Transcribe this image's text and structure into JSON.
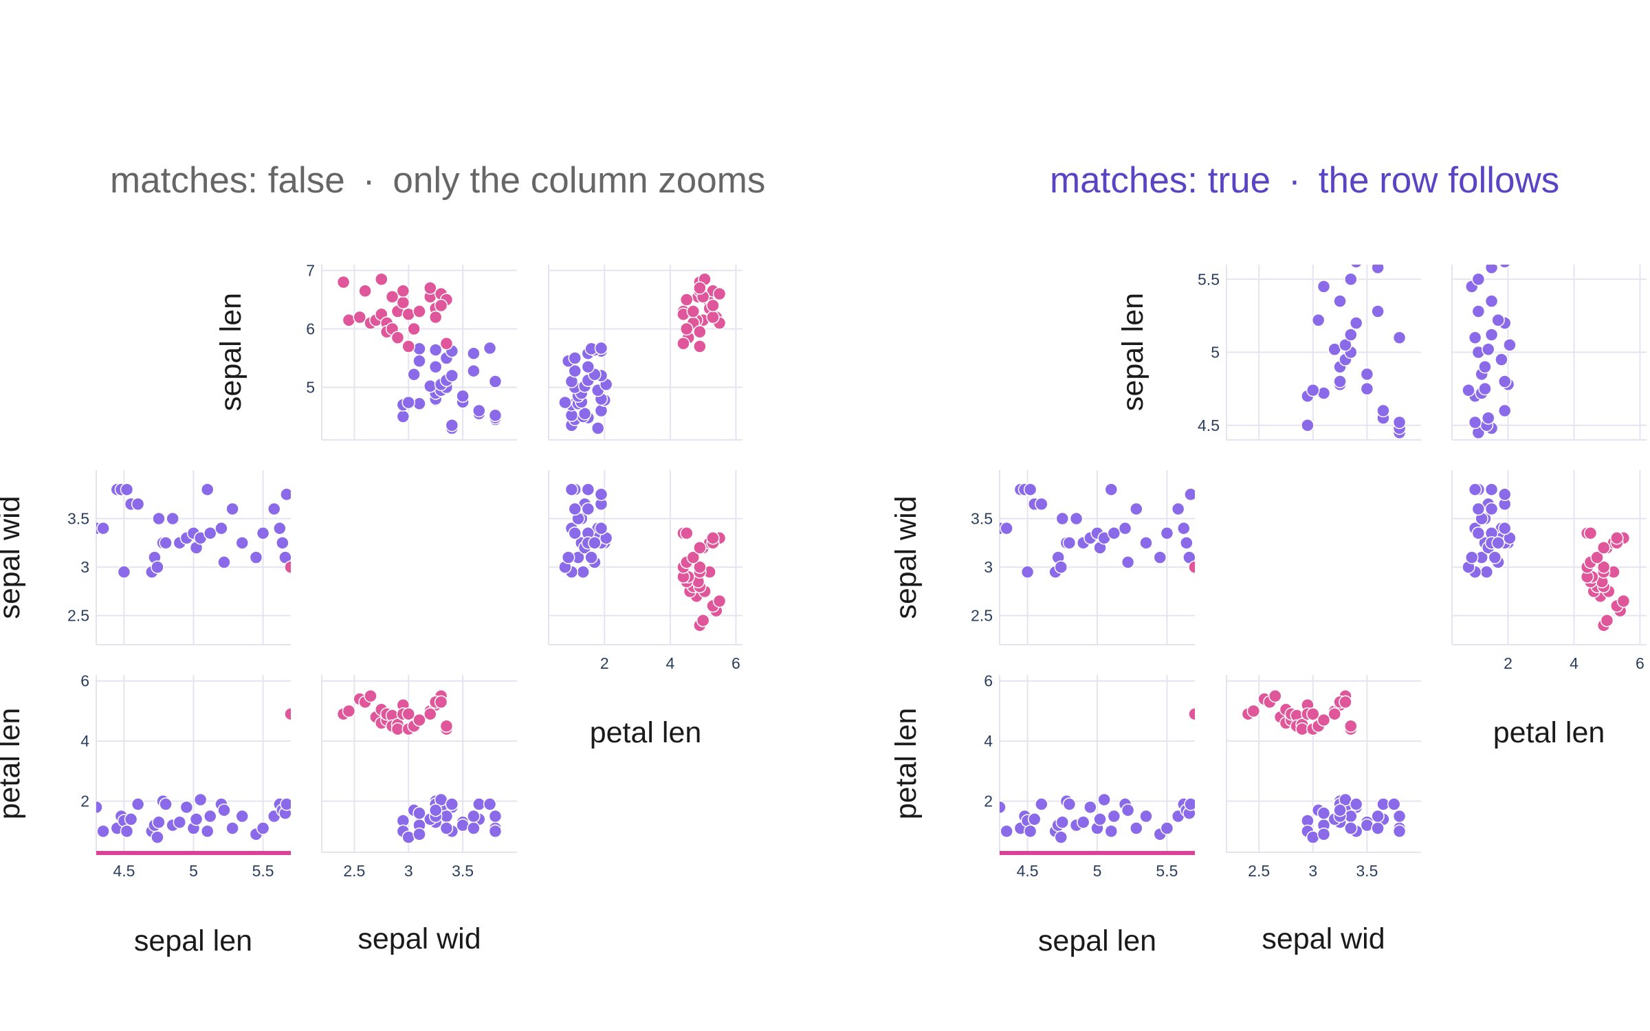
{
  "colors": {
    "cluster_a": "#8a6ae8",
    "cluster_b": "#e0569a",
    "title_false": "#666666",
    "title_true": "#5a44c4",
    "grid": "#e6e3f0",
    "zoom_bar": "#d94496"
  },
  "panels": [
    {
      "title": {
        "matches": "matches: false",
        "separator": "·",
        "description": "only the column zooms"
      },
      "axes": {
        "sepal_len": "sepal len",
        "sepal_wid": "sepal wid",
        "petal_len": "petal len"
      }
    },
    {
      "title": {
        "matches": "matches: true",
        "separator": "·",
        "description": "the row follows"
      },
      "axes": {
        "sepal_len": "sepal len",
        "sepal_wid": "sepal wid",
        "petal_len": "petal len"
      }
    }
  ],
  "chart_data": [
    {
      "type": "scatter",
      "title": "matches: false · only the column zooms",
      "dimensions": [
        "sepal len",
        "sepal wid",
        "petal len"
      ],
      "series": [
        {
          "color": "#8a6ae8",
          "points": [
            [
              4.3,
              3.4,
              1.8
            ],
            [
              4.35,
              3.4,
              1.0
            ],
            [
              4.45,
              3.8,
              1.1
            ],
            [
              4.48,
              3.8,
              1.5
            ],
            [
              4.5,
              2.95,
              1.35
            ],
            [
              4.52,
              3.8,
              1.0
            ],
            [
              4.55,
              3.65,
              1.4
            ],
            [
              4.6,
              3.65,
              1.9
            ],
            [
              4.7,
              2.95,
              1.0
            ],
            [
              4.72,
              3.1,
              1.2
            ],
            [
              4.74,
              3.0,
              0.8
            ],
            [
              4.75,
              3.5,
              1.3
            ],
            [
              4.78,
              3.25,
              2.0
            ],
            [
              4.8,
              3.25,
              1.9
            ],
            [
              4.85,
              3.5,
              1.2
            ],
            [
              4.9,
              3.25,
              1.3
            ],
            [
              4.95,
              3.3,
              1.8
            ],
            [
              5.0,
              3.35,
              1.1
            ],
            [
              5.02,
              3.2,
              1.4
            ],
            [
              5.05,
              3.3,
              2.05
            ],
            [
              5.1,
              3.8,
              1.0
            ],
            [
              5.12,
              3.35,
              1.5
            ],
            [
              5.2,
              3.4,
              1.9
            ],
            [
              5.22,
              3.05,
              1.7
            ],
            [
              5.28,
              3.6,
              1.1
            ],
            [
              5.35,
              3.25,
              1.5
            ],
            [
              5.45,
              3.1,
              0.9
            ],
            [
              5.5,
              3.35,
              1.1
            ],
            [
              5.58,
              3.6,
              1.5
            ],
            [
              5.62,
              3.4,
              1.9
            ],
            [
              5.64,
              3.25,
              1.7
            ],
            [
              5.66,
              3.1,
              1.6
            ],
            [
              5.67,
              3.75,
              1.9
            ]
          ]
        },
        {
          "color": "#e0569a",
          "points": [
            [
              6.8,
              2.4,
              4.9
            ],
            [
              6.15,
              2.45,
              5.0
            ],
            [
              6.2,
              2.55,
              5.4
            ],
            [
              6.65,
              2.6,
              5.3
            ],
            [
              6.1,
              2.65,
              5.5
            ],
            [
              6.15,
              2.7,
              4.8
            ],
            [
              6.85,
              2.75,
              5.05
            ],
            [
              6.25,
              2.75,
              4.6
            ],
            [
              6.1,
              2.8,
              4.7
            ],
            [
              5.95,
              2.8,
              4.9
            ],
            [
              6.55,
              2.85,
              4.85
            ],
            [
              6.0,
              2.85,
              4.5
            ],
            [
              5.85,
              2.9,
              4.55
            ],
            [
              6.3,
              2.9,
              4.4
            ],
            [
              6.45,
              2.95,
              5.2
            ],
            [
              6.65,
              2.95,
              4.9
            ],
            [
              6.25,
              3.0,
              4.4
            ],
            [
              5.7,
              3.0,
              4.9
            ],
            [
              6.0,
              3.05,
              4.5
            ],
            [
              6.3,
              3.1,
              4.7
            ],
            [
              6.55,
              3.2,
              5.0
            ],
            [
              6.35,
              3.25,
              5.2
            ],
            [
              6.6,
              3.3,
              5.5
            ],
            [
              5.75,
              3.35,
              4.4
            ],
            [
              6.5,
              3.35,
              4.5
            ],
            [
              6.7,
              3.2,
              4.9
            ],
            [
              6.2,
              3.25,
              5.3
            ],
            [
              6.4,
              3.3,
              5.3
            ]
          ]
        }
      ]
    },
    {
      "type": "scatter",
      "title": "matches: true · the row follows",
      "dimensions": [
        "sepal len",
        "sepal wid",
        "petal len"
      ],
      "series": [
        {
          "color": "#8a6ae8",
          "points": [
            [
              4.3,
              3.4,
              1.8
            ],
            [
              4.35,
              3.4,
              1.0
            ],
            [
              4.45,
              3.8,
              1.1
            ],
            [
              4.48,
              3.8,
              1.5
            ],
            [
              4.5,
              2.95,
              1.35
            ],
            [
              4.52,
              3.8,
              1.0
            ],
            [
              4.55,
              3.65,
              1.4
            ],
            [
              4.6,
              3.65,
              1.9
            ],
            [
              4.7,
              2.95,
              1.0
            ],
            [
              4.72,
              3.1,
              1.2
            ],
            [
              4.74,
              3.0,
              0.8
            ],
            [
              4.75,
              3.5,
              1.3
            ],
            [
              4.78,
              3.25,
              2.0
            ],
            [
              4.8,
              3.25,
              1.9
            ],
            [
              4.85,
              3.5,
              1.2
            ],
            [
              4.9,
              3.25,
              1.3
            ],
            [
              4.95,
              3.3,
              1.8
            ],
            [
              5.0,
              3.35,
              1.1
            ],
            [
              5.02,
              3.2,
              1.4
            ],
            [
              5.05,
              3.3,
              2.05
            ],
            [
              5.1,
              3.8,
              1.0
            ],
            [
              5.12,
              3.35,
              1.5
            ],
            [
              5.2,
              3.4,
              1.9
            ],
            [
              5.22,
              3.05,
              1.7
            ],
            [
              5.28,
              3.6,
              1.1
            ],
            [
              5.35,
              3.25,
              1.5
            ],
            [
              5.45,
              3.1,
              0.9
            ],
            [
              5.5,
              3.35,
              1.1
            ],
            [
              5.58,
              3.6,
              1.5
            ],
            [
              5.62,
              3.4,
              1.9
            ],
            [
              5.64,
              3.25,
              1.7
            ],
            [
              5.66,
              3.1,
              1.6
            ],
            [
              5.67,
              3.75,
              1.9
            ]
          ]
        },
        {
          "color": "#e0569a",
          "points": [
            [
              6.8,
              2.4,
              4.9
            ],
            [
              6.15,
              2.45,
              5.0
            ],
            [
              6.2,
              2.55,
              5.4
            ],
            [
              6.65,
              2.6,
              5.3
            ],
            [
              6.1,
              2.65,
              5.5
            ],
            [
              6.15,
              2.7,
              4.8
            ],
            [
              6.85,
              2.75,
              5.05
            ],
            [
              6.25,
              2.75,
              4.6
            ],
            [
              6.1,
              2.8,
              4.7
            ],
            [
              5.95,
              2.8,
              4.9
            ],
            [
              6.55,
              2.85,
              4.85
            ],
            [
              6.0,
              2.85,
              4.5
            ],
            [
              5.85,
              2.9,
              4.55
            ],
            [
              6.3,
              2.9,
              4.4
            ],
            [
              6.45,
              2.95,
              5.2
            ],
            [
              6.65,
              2.95,
              4.9
            ],
            [
              6.25,
              3.0,
              4.4
            ],
            [
              5.7,
              3.0,
              4.9
            ],
            [
              6.0,
              3.05,
              4.5
            ],
            [
              6.3,
              3.1,
              4.7
            ],
            [
              6.55,
              3.2,
              5.0
            ],
            [
              6.35,
              3.25,
              5.2
            ],
            [
              6.6,
              3.3,
              5.5
            ],
            [
              5.75,
              3.35,
              4.4
            ],
            [
              6.5,
              3.35,
              4.5
            ],
            [
              6.7,
              3.2,
              4.9
            ],
            [
              6.2,
              3.25,
              5.3
            ],
            [
              6.4,
              3.3,
              5.3
            ]
          ]
        }
      ],
      "sepal_len_range": [
        4.4,
        5.6
      ]
    }
  ]
}
